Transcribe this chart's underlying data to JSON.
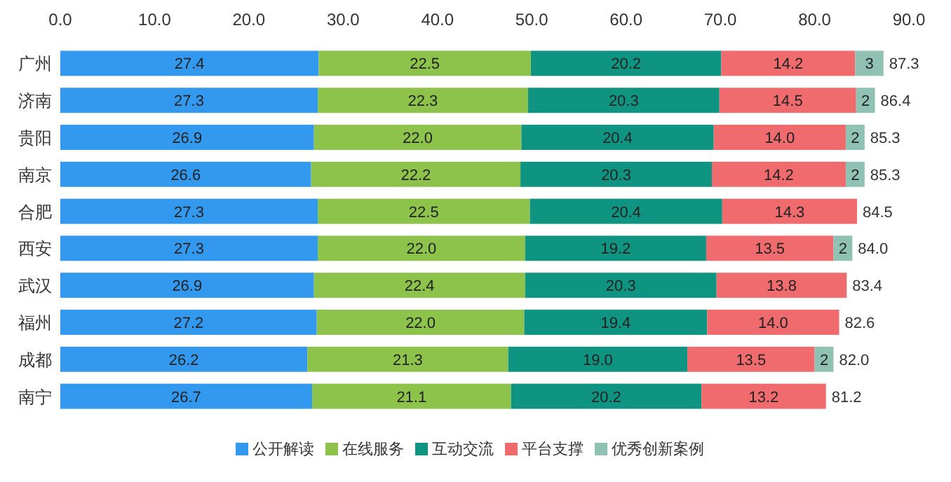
{
  "chart_data": {
    "type": "bar",
    "orientation": "horizontal",
    "stacked": true,
    "categories": [
      "广州",
      "济南",
      "贵阳",
      "南京",
      "合肥",
      "西安",
      "武汉",
      "福州",
      "成都",
      "南宁"
    ],
    "series": [
      {
        "name": "公开解读",
        "color": "#3399ee",
        "values": [
          27.4,
          27.3,
          26.9,
          26.6,
          27.3,
          27.3,
          26.9,
          27.2,
          26.2,
          26.7
        ],
        "value_labels": [
          "27.4",
          "27.3",
          "26.9",
          "26.6",
          "27.3",
          "27.3",
          "26.9",
          "27.2",
          "26.2",
          "26.7"
        ]
      },
      {
        "name": "在线服务",
        "color": "#8dc34b",
        "values": [
          22.5,
          22.3,
          22.0,
          22.2,
          22.5,
          22.0,
          22.4,
          22.0,
          21.3,
          21.1
        ],
        "value_labels": [
          "22.5",
          "22.3",
          "22.0",
          "22.2",
          "22.5",
          "22.0",
          "22.4",
          "22.0",
          "21.3",
          "21.1"
        ]
      },
      {
        "name": "互动交流",
        "color": "#0f9482",
        "values": [
          20.2,
          20.3,
          20.4,
          20.3,
          20.4,
          19.2,
          20.3,
          19.4,
          19.0,
          20.2
        ],
        "value_labels": [
          "20.2",
          "20.3",
          "20.4",
          "20.3",
          "20.4",
          "19.2",
          "20.3",
          "19.4",
          "19.0",
          "20.2"
        ]
      },
      {
        "name": "平台支撑",
        "color": "#ef6b6e",
        "values": [
          14.2,
          14.5,
          14.0,
          14.2,
          14.3,
          13.5,
          13.8,
          14.0,
          13.5,
          13.2
        ],
        "value_labels": [
          "14.2",
          "14.5",
          "14.0",
          "14.2",
          "14.3",
          "13.5",
          "13.8",
          "14.0",
          "13.5",
          "13.2"
        ]
      },
      {
        "name": "优秀创新案例",
        "color": "#8fc2b2",
        "values": [
          3,
          2,
          2,
          2,
          null,
          2,
          null,
          null,
          2,
          null
        ],
        "value_labels": [
          "3",
          "2",
          "2",
          "2",
          null,
          "2",
          null,
          null,
          "2",
          null
        ]
      }
    ],
    "totals": [
      "87.3",
      "86.4",
      "85.3",
      "85.3",
      "84.5",
      "84.0",
      "83.4",
      "82.6",
      "82.0",
      "81.2"
    ],
    "xlim": [
      0,
      90
    ],
    "xticks": [
      {
        "value": 0,
        "label": "0.0"
      },
      {
        "value": 10,
        "label": "10.0"
      },
      {
        "value": 20,
        "label": "20.0"
      },
      {
        "value": 30,
        "label": "30.0"
      },
      {
        "value": 40,
        "label": "40.0"
      },
      {
        "value": 50,
        "label": "50.0"
      },
      {
        "value": 60,
        "label": "60.0"
      },
      {
        "value": 70,
        "label": "70.0"
      },
      {
        "value": 80,
        "label": "80.0"
      },
      {
        "value": 90,
        "label": "90.0"
      }
    ],
    "legend": "bottom",
    "grid": false
  }
}
